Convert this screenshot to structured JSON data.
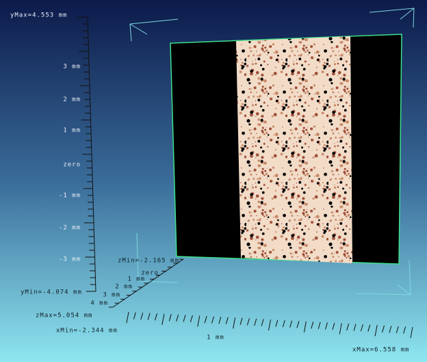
{
  "y_axis": {
    "max_label": "yMax=4.553 mm",
    "tick_labels": [
      "3 mm",
      "2 mm",
      "1 mm",
      "zero",
      "-1 mm",
      "-2 mm",
      "-3 mm"
    ],
    "min_label": "yMin=-4.074 mm"
  },
  "z_axis": {
    "min_label": "zMin=-2.165 mm",
    "tick_labels": [
      "zero",
      "1 mm",
      "2 mm",
      "3 mm",
      "4 mm"
    ],
    "max_label": "zMax=5.054 mm"
  },
  "x_axis": {
    "min_label": "xMin=-2.344 mm",
    "tick_labels": [
      "1 mm"
    ],
    "max_label": "xMax=6.558 mm"
  }
}
